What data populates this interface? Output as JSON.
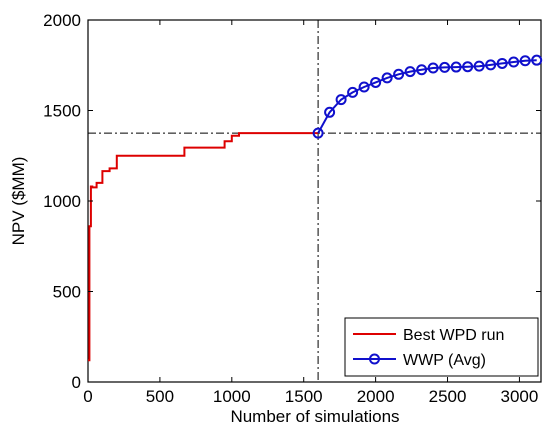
{
  "chart_data": {
    "type": "line",
    "xlabel": "Number of simulations",
    "ylabel": "NPV ($MM)",
    "xlim": [
      0,
      3150
    ],
    "ylim": [
      0,
      2000
    ],
    "x_ticks": [
      "0",
      "500",
      "1000",
      "1500",
      "2000",
      "2500",
      "3000"
    ],
    "y_ticks": [
      "0",
      "500",
      "1000",
      "1500",
      "2000"
    ],
    "x_tick_values": [
      0,
      500,
      1000,
      1500,
      2000,
      2500,
      3000
    ],
    "y_tick_values": [
      0,
      500,
      1000,
      1500,
      2000
    ],
    "grid": false,
    "legend_position": "bottom-right",
    "reference_lines": {
      "vertical_x": 1600,
      "horizontal_y": 1375,
      "style": "dash-dot"
    },
    "series": [
      {
        "name": "Best WPD run",
        "color": "#dd0000",
        "line_style": "step",
        "marker": "none",
        "x": [
          0,
          10,
          10,
          20,
          20,
          30,
          30,
          60,
          60,
          100,
          100,
          150,
          150,
          200,
          200,
          670,
          670,
          950,
          950,
          1000,
          1000,
          1050,
          1050,
          1600
        ],
        "y": [
          120,
          120,
          860,
          860,
          1080,
          1080,
          1075,
          1075,
          1100,
          1100,
          1165,
          1165,
          1180,
          1180,
          1250,
          1250,
          1295,
          1295,
          1330,
          1330,
          1360,
          1360,
          1375,
          1375
        ]
      },
      {
        "name": "WWP (Avg)",
        "color": "#1010cc",
        "line_style": "solid",
        "marker": "circle",
        "x": [
          1600,
          1680,
          1760,
          1840,
          1920,
          2000,
          2080,
          2160,
          2240,
          2320,
          2400,
          2480,
          2560,
          2640,
          2720,
          2800,
          2880,
          2960,
          3040,
          3120
        ],
        "y": [
          1375,
          1490,
          1560,
          1600,
          1630,
          1655,
          1680,
          1700,
          1715,
          1725,
          1735,
          1738,
          1740,
          1742,
          1745,
          1752,
          1760,
          1768,
          1775,
          1778
        ]
      }
    ]
  }
}
